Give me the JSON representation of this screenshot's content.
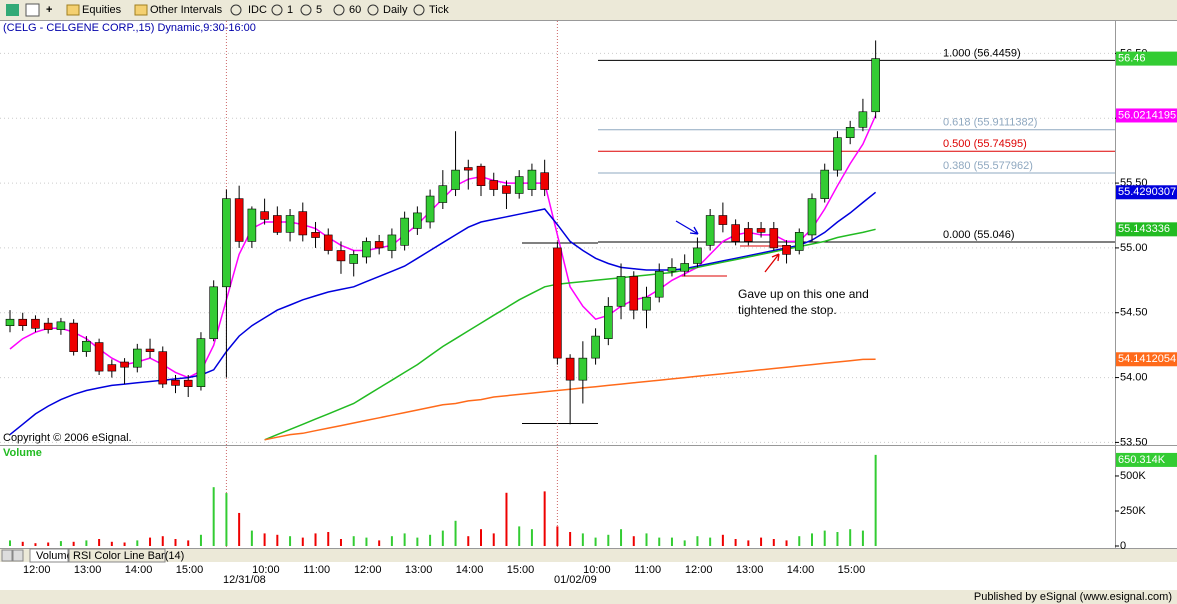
{
  "toolbar": {
    "items": [
      "Equities",
      "Other Intervals",
      "IDC",
      "1",
      "5",
      "60",
      "Daily",
      "Tick"
    ]
  },
  "chart_data": {
    "type": "candlestick",
    "title": "(CELG - CELGENE CORP.,15) Dynamic,9:30-16:00",
    "copyright": "Copyright © 2006 eSignal.",
    "categories": [
      null,
      "12:00",
      null,
      null,
      null,
      "13:00",
      null,
      null,
      null,
      "14:00",
      null,
      null,
      null,
      "15:00",
      null,
      null,
      null,
      null,
      null,
      "10:00",
      null,
      null,
      null,
      "11:00",
      null,
      null,
      null,
      "12:00",
      null,
      null,
      null,
      "13:00",
      null,
      null,
      null,
      "14:00",
      null,
      null,
      null,
      "15:00",
      null,
      null,
      null,
      null,
      null,
      "10:00",
      null,
      null,
      null,
      "11:00",
      null,
      null,
      null,
      "12:00",
      null,
      null,
      null,
      "13:00",
      null,
      null,
      null,
      "14:00",
      null,
      null,
      null,
      "15:00",
      null,
      null,
      null
    ],
    "dates": [
      null,
      null,
      null,
      null,
      null,
      null,
      null,
      null,
      null,
      null,
      null,
      null,
      null,
      null,
      null,
      null,
      null,
      "12/31/08",
      null,
      null,
      null,
      null,
      null,
      null,
      null,
      null,
      null,
      null,
      null,
      null,
      null,
      null,
      null,
      null,
      null,
      null,
      null,
      null,
      null,
      null,
      null,
      null,
      null,
      "01/02/09",
      null,
      null,
      null,
      null,
      null,
      null,
      null,
      null,
      null,
      null,
      null,
      null,
      null,
      null,
      null,
      null,
      null,
      null,
      null,
      null,
      null,
      null,
      null,
      null,
      null
    ],
    "ohlc": [
      [
        54.4,
        54.52,
        54.35,
        54.45
      ],
      [
        54.45,
        54.5,
        54.36,
        54.4
      ],
      [
        54.45,
        54.48,
        54.35,
        54.38
      ],
      [
        54.42,
        54.46,
        54.34,
        54.37
      ],
      [
        54.37,
        54.46,
        54.33,
        54.43
      ],
      [
        54.42,
        54.45,
        54.17,
        54.2
      ],
      [
        54.2,
        54.32,
        54.16,
        54.28
      ],
      [
        54.27,
        54.3,
        54.02,
        54.05
      ],
      [
        54.1,
        54.14,
        54.0,
        54.05
      ],
      [
        54.12,
        54.15,
        53.95,
        54.08
      ],
      [
        54.08,
        54.26,
        54.04,
        54.22
      ],
      [
        54.22,
        54.3,
        54.15,
        54.2
      ],
      [
        54.2,
        54.24,
        53.92,
        53.95
      ],
      [
        53.98,
        54.02,
        53.88,
        53.94
      ],
      [
        53.98,
        54.02,
        53.85,
        53.93
      ],
      [
        53.93,
        54.35,
        53.9,
        54.3
      ],
      [
        54.3,
        54.75,
        54.28,
        54.7
      ],
      [
        54.7,
        55.45,
        54.0,
        55.38
      ],
      [
        55.38,
        55.48,
        55.0,
        55.05
      ],
      [
        55.05,
        55.32,
        55.0,
        55.3
      ],
      [
        55.28,
        55.38,
        55.18,
        55.22
      ],
      [
        55.25,
        55.32,
        55.1,
        55.12
      ],
      [
        55.12,
        55.3,
        55.05,
        55.25
      ],
      [
        55.28,
        55.35,
        55.05,
        55.1
      ],
      [
        55.12,
        55.2,
        55.0,
        55.08
      ],
      [
        55.1,
        55.15,
        54.95,
        54.98
      ],
      [
        54.98,
        55.05,
        54.8,
        54.9
      ],
      [
        54.88,
        54.98,
        54.78,
        54.95
      ],
      [
        54.93,
        55.08,
        54.88,
        55.05
      ],
      [
        55.05,
        55.1,
        54.95,
        55.0
      ],
      [
        54.98,
        55.15,
        54.92,
        55.1
      ],
      [
        55.02,
        55.28,
        54.98,
        55.23
      ],
      [
        55.15,
        55.32,
        55.1,
        55.27
      ],
      [
        55.2,
        55.45,
        55.15,
        55.4
      ],
      [
        55.35,
        55.6,
        55.3,
        55.48
      ],
      [
        55.45,
        55.9,
        55.4,
        55.6
      ],
      [
        55.62,
        55.68,
        55.45,
        55.6
      ],
      [
        55.63,
        55.65,
        55.4,
        55.48
      ],
      [
        55.52,
        55.58,
        55.4,
        55.45
      ],
      [
        55.48,
        55.52,
        55.3,
        55.42
      ],
      [
        55.42,
        55.6,
        55.38,
        55.55
      ],
      [
        55.45,
        55.65,
        55.4,
        55.6
      ],
      [
        55.58,
        55.68,
        55.4,
        55.45
      ],
      [
        55.0,
        55.05,
        54.1,
        54.15
      ],
      [
        54.15,
        54.18,
        53.64,
        53.98
      ],
      [
        53.98,
        54.28,
        53.8,
        54.15
      ],
      [
        54.15,
        54.38,
        54.1,
        54.32
      ],
      [
        54.3,
        54.62,
        54.25,
        54.55
      ],
      [
        54.55,
        54.88,
        54.45,
        54.78
      ],
      [
        54.78,
        54.82,
        54.45,
        54.52
      ],
      [
        54.52,
        54.7,
        54.38,
        54.62
      ],
      [
        54.62,
        54.88,
        54.58,
        54.82
      ],
      [
        54.82,
        54.92,
        54.78,
        54.85
      ],
      [
        54.82,
        54.95,
        54.78,
        54.88
      ],
      [
        54.88,
        55.08,
        54.85,
        55.0
      ],
      [
        55.02,
        55.3,
        54.98,
        55.25
      ],
      [
        55.25,
        55.35,
        55.12,
        55.18
      ],
      [
        55.18,
        55.22,
        55.02,
        55.05
      ],
      [
        55.15,
        55.2,
        55.02,
        55.05
      ],
      [
        55.15,
        55.2,
        55.08,
        55.12
      ],
      [
        55.15,
        55.2,
        54.98,
        55.0
      ],
      [
        55.02,
        55.06,
        54.88,
        54.95
      ],
      [
        54.98,
        55.15,
        54.95,
        55.12
      ],
      [
        55.1,
        55.42,
        55.05,
        55.38
      ],
      [
        55.38,
        55.65,
        55.35,
        55.6
      ],
      [
        55.6,
        55.9,
        55.55,
        55.85
      ],
      [
        55.85,
        55.98,
        55.8,
        55.93
      ],
      [
        55.93,
        56.15,
        55.9,
        56.05
      ],
      [
        56.05,
        56.6,
        56.0,
        56.46
      ]
    ],
    "colors": {
      "up": "#33cc33",
      "down": "#ee0000"
    },
    "ylim": [
      53.48,
      56.75
    ],
    "yticks": [
      {
        "value": 53.5,
        "label": "53.50"
      },
      {
        "value": 54,
        "label": "54.00"
      },
      {
        "value": 54.5,
        "label": "54.50"
      },
      {
        "value": 55,
        "label": "55.00"
      },
      {
        "value": 55.5,
        "label": "55.50"
      },
      {
        "value": 56,
        "label": "56.00"
      },
      {
        "value": 56.5,
        "label": "56.50"
      }
    ],
    "grid": true,
    "series": [
      {
        "color": "#ff00ff",
        "values": [
          54.22,
          54.3,
          54.35,
          54.38,
          54.38,
          54.35,
          54.3,
          54.22,
          54.15,
          54.1,
          54.12,
          54.15,
          54.1,
          54.04,
          54.0,
          54.05,
          54.25,
          54.6,
          54.95,
          55.15,
          55.2,
          55.2,
          55.2,
          55.18,
          55.15,
          55.08,
          55.02,
          54.98,
          54.98,
          55.0,
          55.02,
          55.1,
          55.18,
          55.28,
          55.38,
          55.48,
          55.53,
          55.55,
          55.52,
          55.5,
          55.5,
          55.5,
          55.5,
          55.1,
          54.7,
          54.55,
          54.45,
          54.48,
          54.55,
          54.6,
          54.62,
          54.68,
          54.75,
          54.8,
          54.85,
          54.95,
          55.05,
          55.1,
          55.12,
          55.1,
          55.1,
          55.05,
          55.05,
          55.15,
          55.3,
          55.48,
          55.65,
          55.8,
          56.0214195
        ]
      },
      {
        "color": "#0000dd",
        "values": [
          53.56,
          53.64,
          53.72,
          53.78,
          53.83,
          53.87,
          53.9,
          53.92,
          53.94,
          53.95,
          53.96,
          53.97,
          53.98,
          53.99,
          54.0,
          54.02,
          54.06,
          54.2,
          54.32,
          54.4,
          54.46,
          54.52,
          54.56,
          54.6,
          54.63,
          54.66,
          54.68,
          54.7,
          54.74,
          54.78,
          54.82,
          54.86,
          54.92,
          54.98,
          55.04,
          55.1,
          55.16,
          55.2,
          55.22,
          55.24,
          55.26,
          55.28,
          55.3,
          55.18,
          55.05,
          54.98,
          54.92,
          54.88,
          54.85,
          54.84,
          54.83,
          54.83,
          54.83,
          54.84,
          54.86,
          54.88,
          54.9,
          54.92,
          54.94,
          54.96,
          54.98,
          55.0,
          55.02,
          55.06,
          55.12,
          55.2,
          55.27,
          55.35,
          55.4290307
        ]
      },
      {
        "color": "#22bb22",
        "values": [
          null,
          null,
          null,
          null,
          null,
          null,
          null,
          null,
          null,
          null,
          null,
          null,
          null,
          null,
          null,
          null,
          null,
          null,
          null,
          null,
          53.52,
          53.56,
          53.6,
          53.64,
          53.68,
          53.72,
          53.76,
          53.8,
          53.86,
          53.92,
          53.98,
          54.04,
          54.1,
          54.17,
          54.24,
          54.3,
          54.36,
          54.42,
          54.48,
          54.54,
          54.6,
          54.65,
          54.7,
          54.72,
          54.73,
          54.74,
          54.75,
          54.76,
          54.77,
          54.78,
          54.79,
          54.8,
          54.81,
          54.83,
          54.85,
          54.87,
          54.89,
          54.91,
          54.93,
          54.95,
          54.97,
          54.99,
          55.01,
          55.03,
          55.05,
          55.08,
          55.1,
          55.12,
          55.143336
        ]
      },
      {
        "color": "#ff6a1a",
        "values": [
          null,
          null,
          null,
          null,
          null,
          null,
          null,
          null,
          null,
          null,
          null,
          null,
          null,
          null,
          null,
          null,
          null,
          null,
          null,
          null,
          53.52,
          53.54,
          53.56,
          53.57,
          53.59,
          53.61,
          53.63,
          53.65,
          53.67,
          53.69,
          53.71,
          53.73,
          53.75,
          53.77,
          53.79,
          53.8,
          53.82,
          53.83,
          53.85,
          53.86,
          53.87,
          53.88,
          53.89,
          53.9,
          53.91,
          53.92,
          53.93,
          53.94,
          53.95,
          53.96,
          53.97,
          53.98,
          53.99,
          54.0,
          54.01,
          54.02,
          54.03,
          54.04,
          54.05,
          54.06,
          54.07,
          54.08,
          54.09,
          54.1,
          54.11,
          54.12,
          54.13,
          54.14,
          54.1412054
        ]
      }
    ],
    "fib": [
      {
        "label": "1.000 (56.4459)",
        "value": 56.4459,
        "color": "#000000"
      },
      {
        "label": "0.618 (55.9111382)",
        "value": 55.9111382,
        "color": "#8fa8c0"
      },
      {
        "label": "0.500 (55.74595)",
        "value": 55.74595,
        "color": "#dd0000"
      },
      {
        "label": "0.380 (55.577962)",
        "value": 55.577962,
        "color": "#8fa8c0"
      },
      {
        "label": "0.000 (55.046)",
        "value": 55.046,
        "color": "#000000"
      }
    ],
    "annotation": "Gave up on this one and tightened the stop.",
    "volume": {
      "title": "Volume",
      "values": [
        40000,
        30000,
        20000,
        25000,
        35000,
        30000,
        40000,
        50000,
        30000,
        25000,
        40000,
        60000,
        70000,
        50000,
        40000,
        80000,
        420000,
        378000,
        236000,
        110000,
        90000,
        80000,
        70000,
        60000,
        90000,
        100000,
        50000,
        70000,
        60000,
        40000,
        70000,
        90000,
        60000,
        80000,
        110000,
        180000,
        70000,
        120000,
        90000,
        380000,
        140000,
        120000,
        390000,
        140000,
        100000,
        90000,
        60000,
        80000,
        120000,
        70000,
        90000,
        60000,
        60000,
        40000,
        70000,
        60000,
        80000,
        50000,
        40000,
        60000,
        50000,
        40000,
        70000,
        90000,
        110000,
        100000,
        120000,
        110000,
        650314
      ],
      "last_label": "650.314K",
      "ylim": [
        0,
        714000
      ],
      "yticks": [
        0,
        {
          "value": 250000,
          "label": "250K"
        },
        {
          "value": 500000,
          "label": "500K"
        }
      ]
    },
    "tabs": [
      "Volume",
      "RSI Color Line Bar(14)"
    ]
  },
  "footer": "Published by eSignal (www.esignal.com)"
}
